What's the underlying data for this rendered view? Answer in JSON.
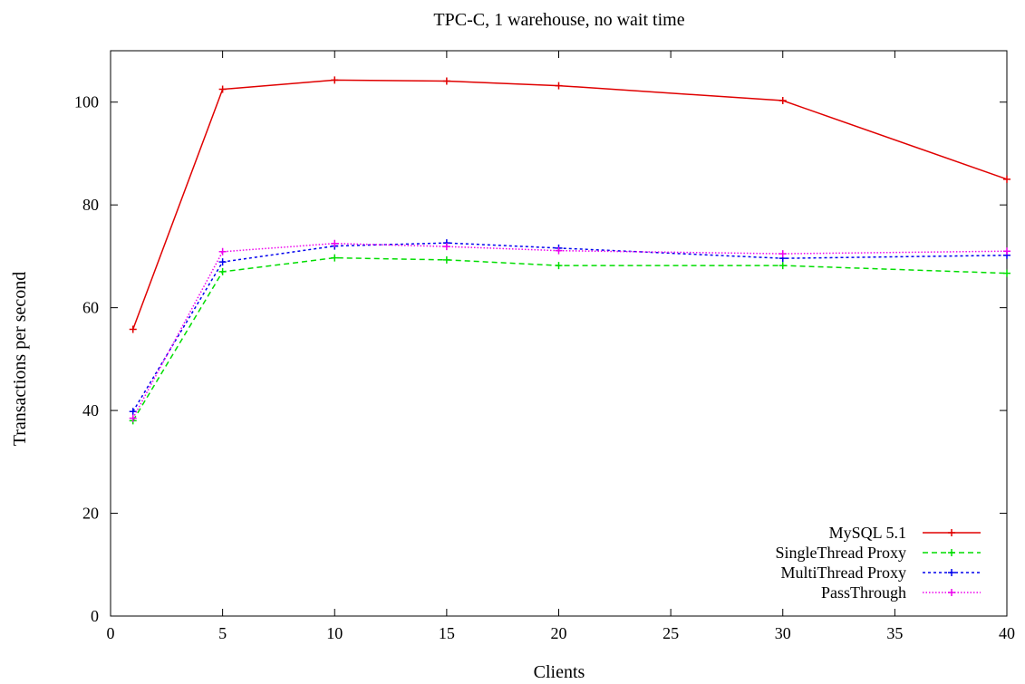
{
  "chart_data": {
    "type": "line",
    "title": "TPC-C, 1 warehouse, no wait time",
    "xlabel": "Clients",
    "ylabel": "Transactions per second",
    "xlim": [
      0,
      40
    ],
    "ylim": [
      0,
      110
    ],
    "xticks": [
      0,
      5,
      10,
      15,
      20,
      25,
      30,
      35,
      40
    ],
    "yticks": [
      0,
      20,
      40,
      60,
      80,
      100
    ],
    "grid": false,
    "legend_position": "bottom-right",
    "x": [
      1,
      5,
      10,
      15,
      20,
      30,
      40
    ],
    "series": [
      {
        "name": "MySQL 5.1",
        "color": "#e00000",
        "dash": "solid",
        "values": [
          55.8,
          102.5,
          104.3,
          104.1,
          103.2,
          100.3,
          85.0
        ]
      },
      {
        "name": "SingleThread Proxy",
        "color": "#00dd00",
        "dash": "dashed",
        "values": [
          38.0,
          67.0,
          69.7,
          69.3,
          68.2,
          68.2,
          66.7
        ]
      },
      {
        "name": "MultiThread Proxy",
        "color": "#0000ee",
        "dash": "dotted",
        "values": [
          39.8,
          68.9,
          72.0,
          72.6,
          71.6,
          69.6,
          70.2
        ]
      },
      {
        "name": "PassThrough",
        "color": "#ee00ee",
        "dash": "fine-dotted",
        "values": [
          38.5,
          70.9,
          72.5,
          71.9,
          71.1,
          70.5,
          71.0
        ]
      }
    ]
  }
}
